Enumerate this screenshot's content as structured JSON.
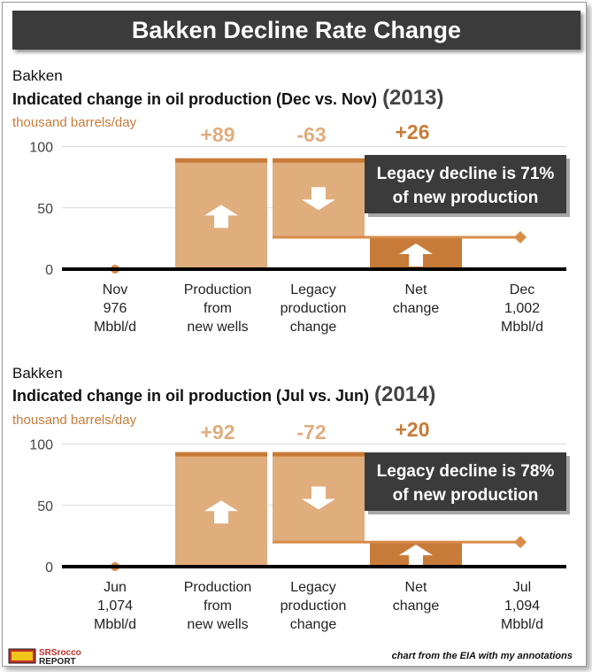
{
  "title": "Bakken Decline Rate Change",
  "colors": {
    "light": "#e0ad7d",
    "dark": "#c87b38",
    "line": "#d98c4a",
    "baseline": "#000000",
    "callout_bg": "#3b3b3b",
    "label_change": "#e0ad7d",
    "net_label": "#c87b38"
  },
  "panels": [
    {
      "region": "Bakken",
      "subtitle": "Indicated change in oil production (Dec vs. Nov)",
      "year": "(2013)",
      "units": "thousand barrels/day",
      "callout_line1": "Legacy decline is 71%",
      "callout_line2": "of new production"
    },
    {
      "region": "Bakken",
      "subtitle": "Indicated change in oil production (Jul vs. Jun)",
      "year": "(2014)",
      "units": "thousand barrels/day",
      "callout_line1": "Legacy decline is 78%",
      "callout_line2": "of new production"
    }
  ],
  "chart_data": [
    {
      "type": "bar",
      "subtype": "waterfall",
      "title": "Indicated change in oil production (Dec vs. Nov) (2013)",
      "ylabel": "thousand barrels/day",
      "ylim": [
        0,
        100
      ],
      "yticks": [
        0,
        50,
        100
      ],
      "categories": [
        [
          "Nov",
          "976",
          "Mbbl/d"
        ],
        [
          "Production",
          "from",
          "new wells"
        ],
        [
          "Legacy",
          "production",
          "change"
        ],
        [
          "Net",
          "change"
        ],
        [
          "Dec",
          "1,002",
          "Mbbl/d"
        ]
      ],
      "start": 0,
      "new_wells": 89,
      "legacy": -63,
      "net": 26,
      "end": 26,
      "change_labels": [
        "+89",
        "-63",
        "+26"
      ]
    },
    {
      "type": "bar",
      "subtype": "waterfall",
      "title": "Indicated change in oil production (Jul vs. Jun) (2014)",
      "ylabel": "thousand barrels/day",
      "ylim": [
        0,
        100
      ],
      "yticks": [
        0,
        50,
        100
      ],
      "categories": [
        [
          "Jun",
          "1,074",
          "Mbbl/d"
        ],
        [
          "Production",
          "from",
          "new wells"
        ],
        [
          "Legacy",
          "production",
          "change"
        ],
        [
          "Net",
          "change"
        ],
        [
          "Jul",
          "1,094",
          "Mbbl/d"
        ]
      ],
      "start": 0,
      "new_wells": 92,
      "legacy": -72,
      "net": 20,
      "end": 20,
      "change_labels": [
        "+92",
        "-72",
        "+20"
      ]
    }
  ],
  "footer": {
    "logo_text": "SRSrocco REPORT",
    "note": "chart from the EIA with my annotations"
  }
}
